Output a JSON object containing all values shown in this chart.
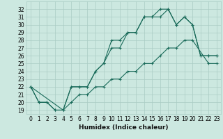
{
  "title": "",
  "xlabel": "Humidex (Indice chaleur)",
  "ylabel": "",
  "bg_color": "#cce8e0",
  "grid_color": "#aaccc4",
  "line_color": "#1a6b5a",
  "x": [
    0,
    1,
    2,
    3,
    4,
    5,
    6,
    7,
    8,
    9,
    10,
    11,
    12,
    13,
    14,
    15,
    16,
    17,
    18,
    19,
    20,
    21,
    22,
    23
  ],
  "line1": [
    22,
    20,
    20,
    19,
    19,
    22,
    22,
    22,
    24,
    25,
    27,
    27,
    29,
    29,
    31,
    31,
    32,
    32,
    30,
    31,
    30,
    26,
    26,
    26
  ],
  "line2": [
    22,
    20,
    20,
    19,
    19,
    22,
    22,
    22,
    24,
    25,
    28,
    28,
    29,
    29,
    31,
    31,
    31,
    32,
    30,
    31,
    30,
    26,
    26,
    26
  ],
  "line3_x": [
    0,
    4,
    5,
    6,
    7,
    8,
    9,
    10,
    11,
    12,
    13,
    14,
    15,
    16,
    17,
    18,
    19,
    20,
    22,
    23
  ],
  "line3_y": [
    22,
    19,
    20,
    21,
    21,
    22,
    22,
    23,
    23,
    24,
    24,
    25,
    25,
    26,
    27,
    27,
    28,
    28,
    25,
    25
  ],
  "ylim": [
    18.5,
    33.0
  ],
  "xlim": [
    -0.5,
    23.5
  ],
  "yticks": [
    19,
    20,
    21,
    22,
    23,
    24,
    25,
    26,
    27,
    28,
    29,
    30,
    31,
    32
  ],
  "xticks": [
    0,
    1,
    2,
    3,
    4,
    5,
    6,
    7,
    8,
    9,
    10,
    11,
    12,
    13,
    14,
    15,
    16,
    17,
    18,
    19,
    20,
    21,
    22,
    23
  ],
  "tick_fontsize": 5.5,
  "label_fontsize": 6.5,
  "label_fontweight": "bold"
}
